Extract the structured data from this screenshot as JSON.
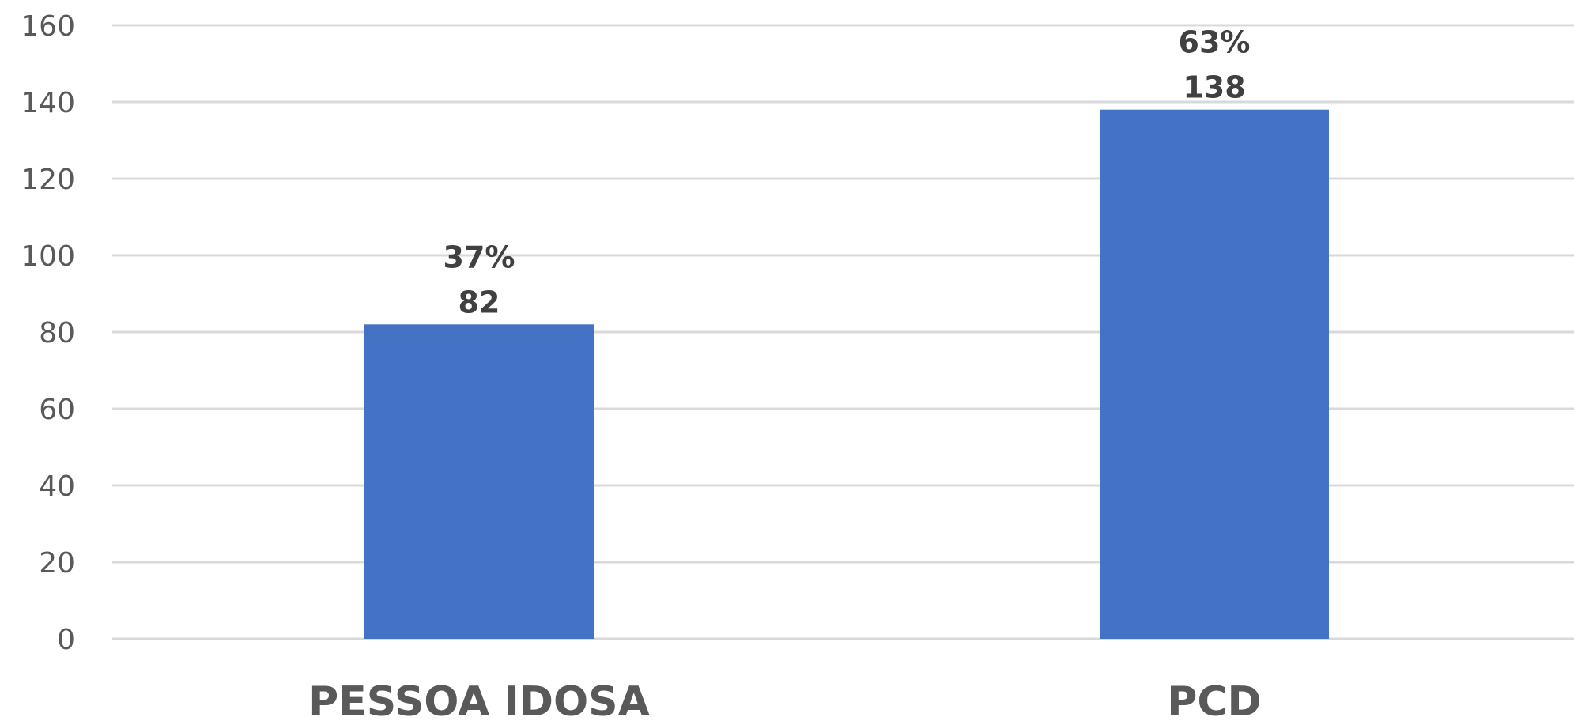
{
  "chart_data": {
    "type": "bar",
    "title": "",
    "xlabel": "",
    "ylabel": "",
    "categories": [
      "PESSOA IDOSA",
      "PCD"
    ],
    "values": [
      82,
      138
    ],
    "percent_labels": [
      "37%",
      "63%"
    ],
    "ylim": [
      0,
      160
    ],
    "yticks": [
      0,
      20,
      40,
      60,
      80,
      100,
      120,
      140,
      160
    ],
    "grid": true,
    "legend": "none",
    "bar_color": "#4472c4",
    "grid_color": "#d9d9d9",
    "tick_color": "#595959",
    "label_color": "#404040"
  }
}
